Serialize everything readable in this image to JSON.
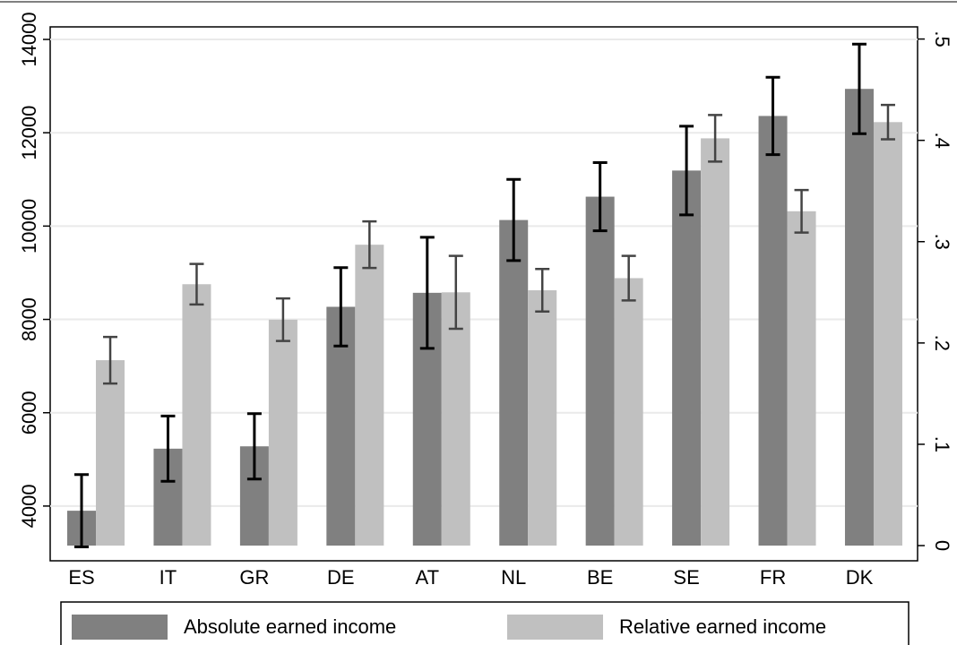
{
  "chart_data": {
    "type": "bar",
    "categories": [
      "ES",
      "IT",
      "GR",
      "DE",
      "AT",
      "NL",
      "BE",
      "SE",
      "FR",
      "DK"
    ],
    "series": [
      {
        "name": "Absolute earned income",
        "color": "#808080",
        "axis": "y",
        "values": [
          3900,
          5230,
          5280,
          8270,
          8570,
          10130,
          10630,
          11190,
          12360,
          12940
        ],
        "errors": [
          775,
          700,
          700,
          840,
          1190,
          870,
          730,
          950,
          830,
          960
        ]
      },
      {
        "name": "Relative earned income",
        "color": "#c0c0c0",
        "axis": "y2",
        "values": [
          0.183,
          0.258,
          0.223,
          0.297,
          0.25,
          0.252,
          0.264,
          0.402,
          0.33,
          0.418
        ],
        "errors": [
          0.023,
          0.02,
          0.021,
          0.023,
          0.036,
          0.021,
          0.022,
          0.023,
          0.021,
          0.017
        ]
      }
    ],
    "ylim": [
      2827,
      14269
    ],
    "yticks": [
      4000,
      6000,
      8000,
      10000,
      12000,
      14000
    ],
    "y2lim": [
      -0.015,
      0.512
    ],
    "y2ticks": [
      0,
      {
        "value": 0.1,
        "label": ".1"
      },
      {
        "value": 0.2,
        "label": ".2"
      },
      {
        "value": 0.3,
        "label": ".3"
      },
      {
        "value": 0.4,
        "label": ".4"
      },
      {
        "value": 0.5,
        "label": ".5"
      }
    ],
    "grid": true,
    "legend": "bottom"
  }
}
